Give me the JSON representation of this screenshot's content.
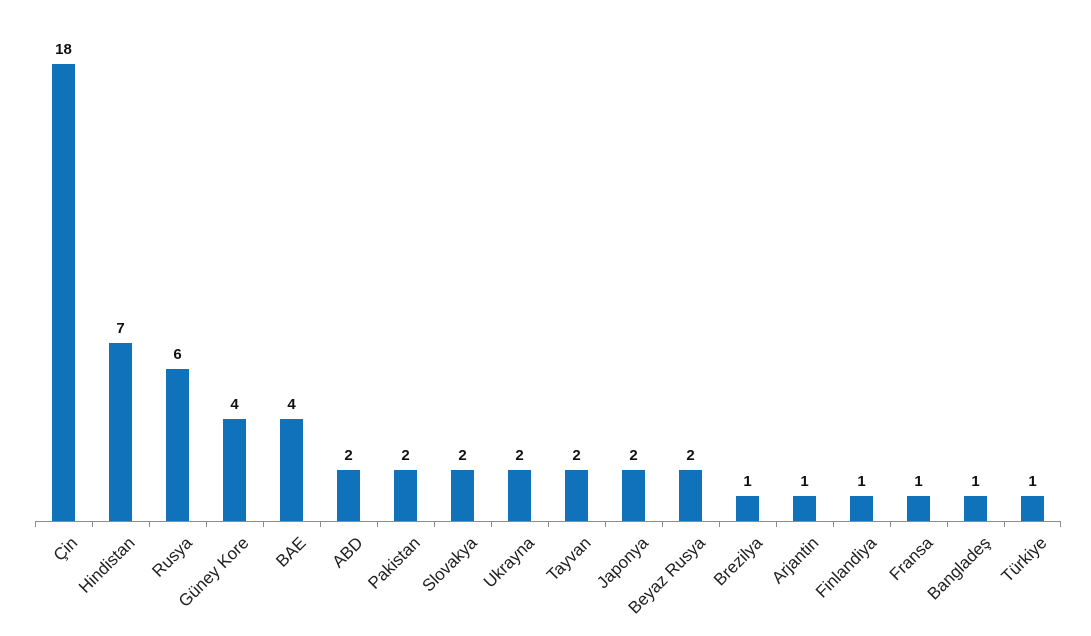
{
  "chart_data": {
    "type": "bar",
    "categories": [
      "Çin",
      "Hindistan",
      "Rusya",
      "Güney Kore",
      "BAE",
      "ABD",
      "Pakistan",
      "Slovakya",
      "Ukrayna",
      "Tayvan",
      "Japonya",
      "Beyaz Rusya",
      "Brezilya",
      "Arjantin",
      "Finlandiya",
      "Fransa",
      "Bangladeş",
      "Türkiye"
    ],
    "values": [
      18,
      7,
      6,
      4,
      4,
      2,
      2,
      2,
      2,
      2,
      2,
      2,
      1,
      1,
      1,
      1,
      1,
      1
    ],
    "data_labels": [
      "18",
      "7",
      "6",
      "4",
      "4",
      "2",
      "2",
      "2",
      "2",
      "2",
      "2",
      "2",
      "1",
      "1",
      "1",
      "1",
      "1",
      "1"
    ],
    "title": "",
    "xlabel": "",
    "ylabel": "",
    "ylim": [
      0,
      18
    ],
    "grid": false,
    "legend": false,
    "y_axis_visible": false,
    "bar_color": "#1172BC",
    "axis_color": "#8C8C8C",
    "value_label_color": "#111111",
    "category_label_color": "#1F1F1F",
    "background_color": "#FFFFFF"
  }
}
